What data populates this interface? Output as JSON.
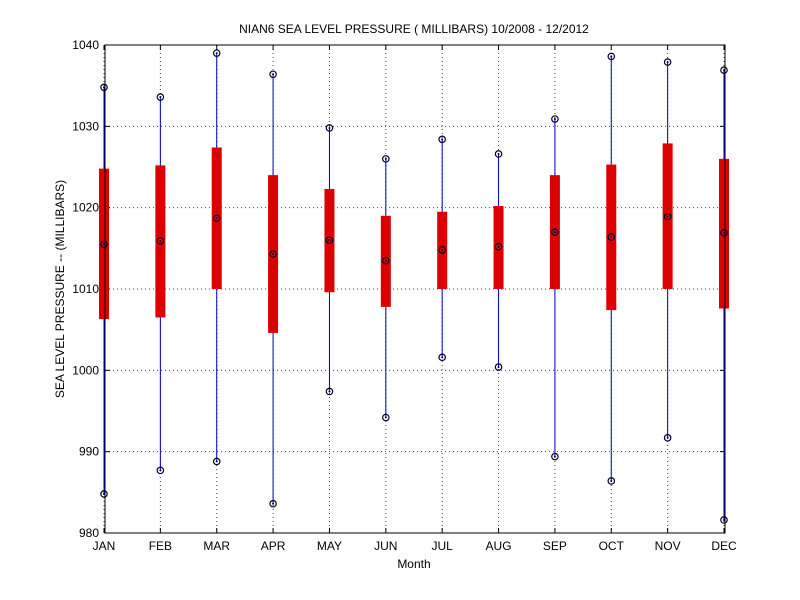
{
  "chart_data": {
    "type": "boxplot",
    "title": "NIAN6  SEA LEVEL PRESSURE ( MILLIBARS) 10/2008 - 12/2012",
    "xlabel": "Month",
    "ylabel": "SEA LEVEL PRESSURE -- (MILLIBARS)",
    "ylim": [
      980,
      1040
    ],
    "yticks": [
      980,
      990,
      1000,
      1010,
      1020,
      1030,
      1040
    ],
    "grid": true,
    "categories": [
      "JAN",
      "FEB",
      "MAR",
      "APR",
      "MAY",
      "JUN",
      "JUL",
      "AUG",
      "SEP",
      "OCT",
      "NOV",
      "DEC"
    ],
    "max": [
      1034.8,
      1033.6,
      1039.0,
      1036.4,
      1029.8,
      1026.0,
      1028.4,
      1026.6,
      1030.9,
      1038.6,
      1037.9,
      1036.9
    ],
    "q3": [
      1024.8,
      1025.2,
      1027.4,
      1024.0,
      1022.3,
      1019.0,
      1019.5,
      1020.2,
      1024.0,
      1025.3,
      1027.9,
      1026.0
    ],
    "median": [
      1015.5,
      1015.9,
      1018.7,
      1014.3,
      1016.0,
      1013.5,
      1014.8,
      1015.2,
      1017.0,
      1016.4,
      1018.9,
      1016.9
    ],
    "q1": [
      1006.3,
      1006.5,
      1010.0,
      1004.6,
      1009.6,
      1007.8,
      1010.0,
      1010.0,
      1010.0,
      1007.4,
      1010.0,
      1007.6
    ],
    "min": [
      984.8,
      987.7,
      988.8,
      983.6,
      997.4,
      994.2,
      1001.6,
      1000.4,
      989.4,
      986.4,
      991.7,
      981.6
    ],
    "colors": {
      "whisker": "#0000cc",
      "box": "#dd0000",
      "marker": "#000033",
      "grid": "#444444"
    }
  }
}
